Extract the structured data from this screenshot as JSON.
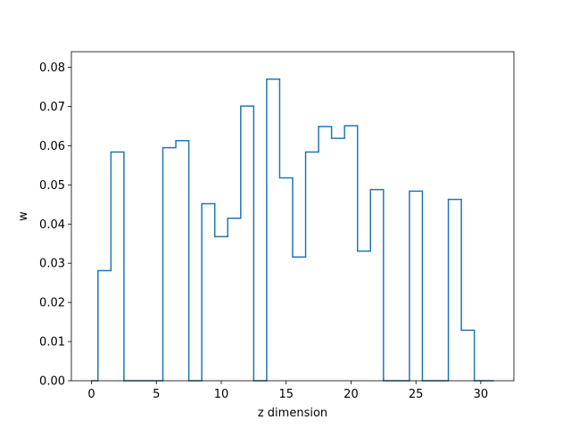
{
  "chart_data": {
    "type": "step",
    "title": "",
    "xlabel": "z dimension",
    "ylabel": "w",
    "xlim": [
      -1.55,
      32.55
    ],
    "ylim": [
      0,
      0.084
    ],
    "xticks": [
      0,
      5,
      10,
      15,
      20,
      25,
      30
    ],
    "yticks": [
      0.0,
      0.01,
      0.02,
      0.03,
      0.04,
      0.05,
      0.06,
      0.07,
      0.08
    ],
    "ytick_labels": [
      "0.00",
      "0.01",
      "0.02",
      "0.03",
      "0.04",
      "0.05",
      "0.06",
      "0.07",
      "0.08"
    ],
    "xtick_labels": [
      "0",
      "5",
      "10",
      "15",
      "20",
      "25",
      "30"
    ],
    "grid": false,
    "line_color": "#1f77b4",
    "series": [
      {
        "x": [
          0,
          1,
          2,
          3,
          4,
          5,
          6,
          7,
          8,
          9,
          10,
          11,
          12,
          13,
          14,
          15,
          16,
          17,
          18,
          19,
          20,
          21,
          22,
          23,
          24,
          25,
          26,
          27,
          28,
          29,
          30,
          31
        ],
        "values": [
          0.0,
          0.0281,
          0.0584,
          0.0,
          0.0,
          0.0,
          0.0595,
          0.0613,
          0.0,
          0.0452,
          0.0368,
          0.0415,
          0.0701,
          0.0,
          0.077,
          0.0518,
          0.0316,
          0.0584,
          0.0649,
          0.0619,
          0.0651,
          0.0331,
          0.0488,
          0.0,
          0.0,
          0.0484,
          0.0,
          0.0,
          0.0463,
          0.0129,
          0.0,
          0.0
        ]
      }
    ]
  }
}
